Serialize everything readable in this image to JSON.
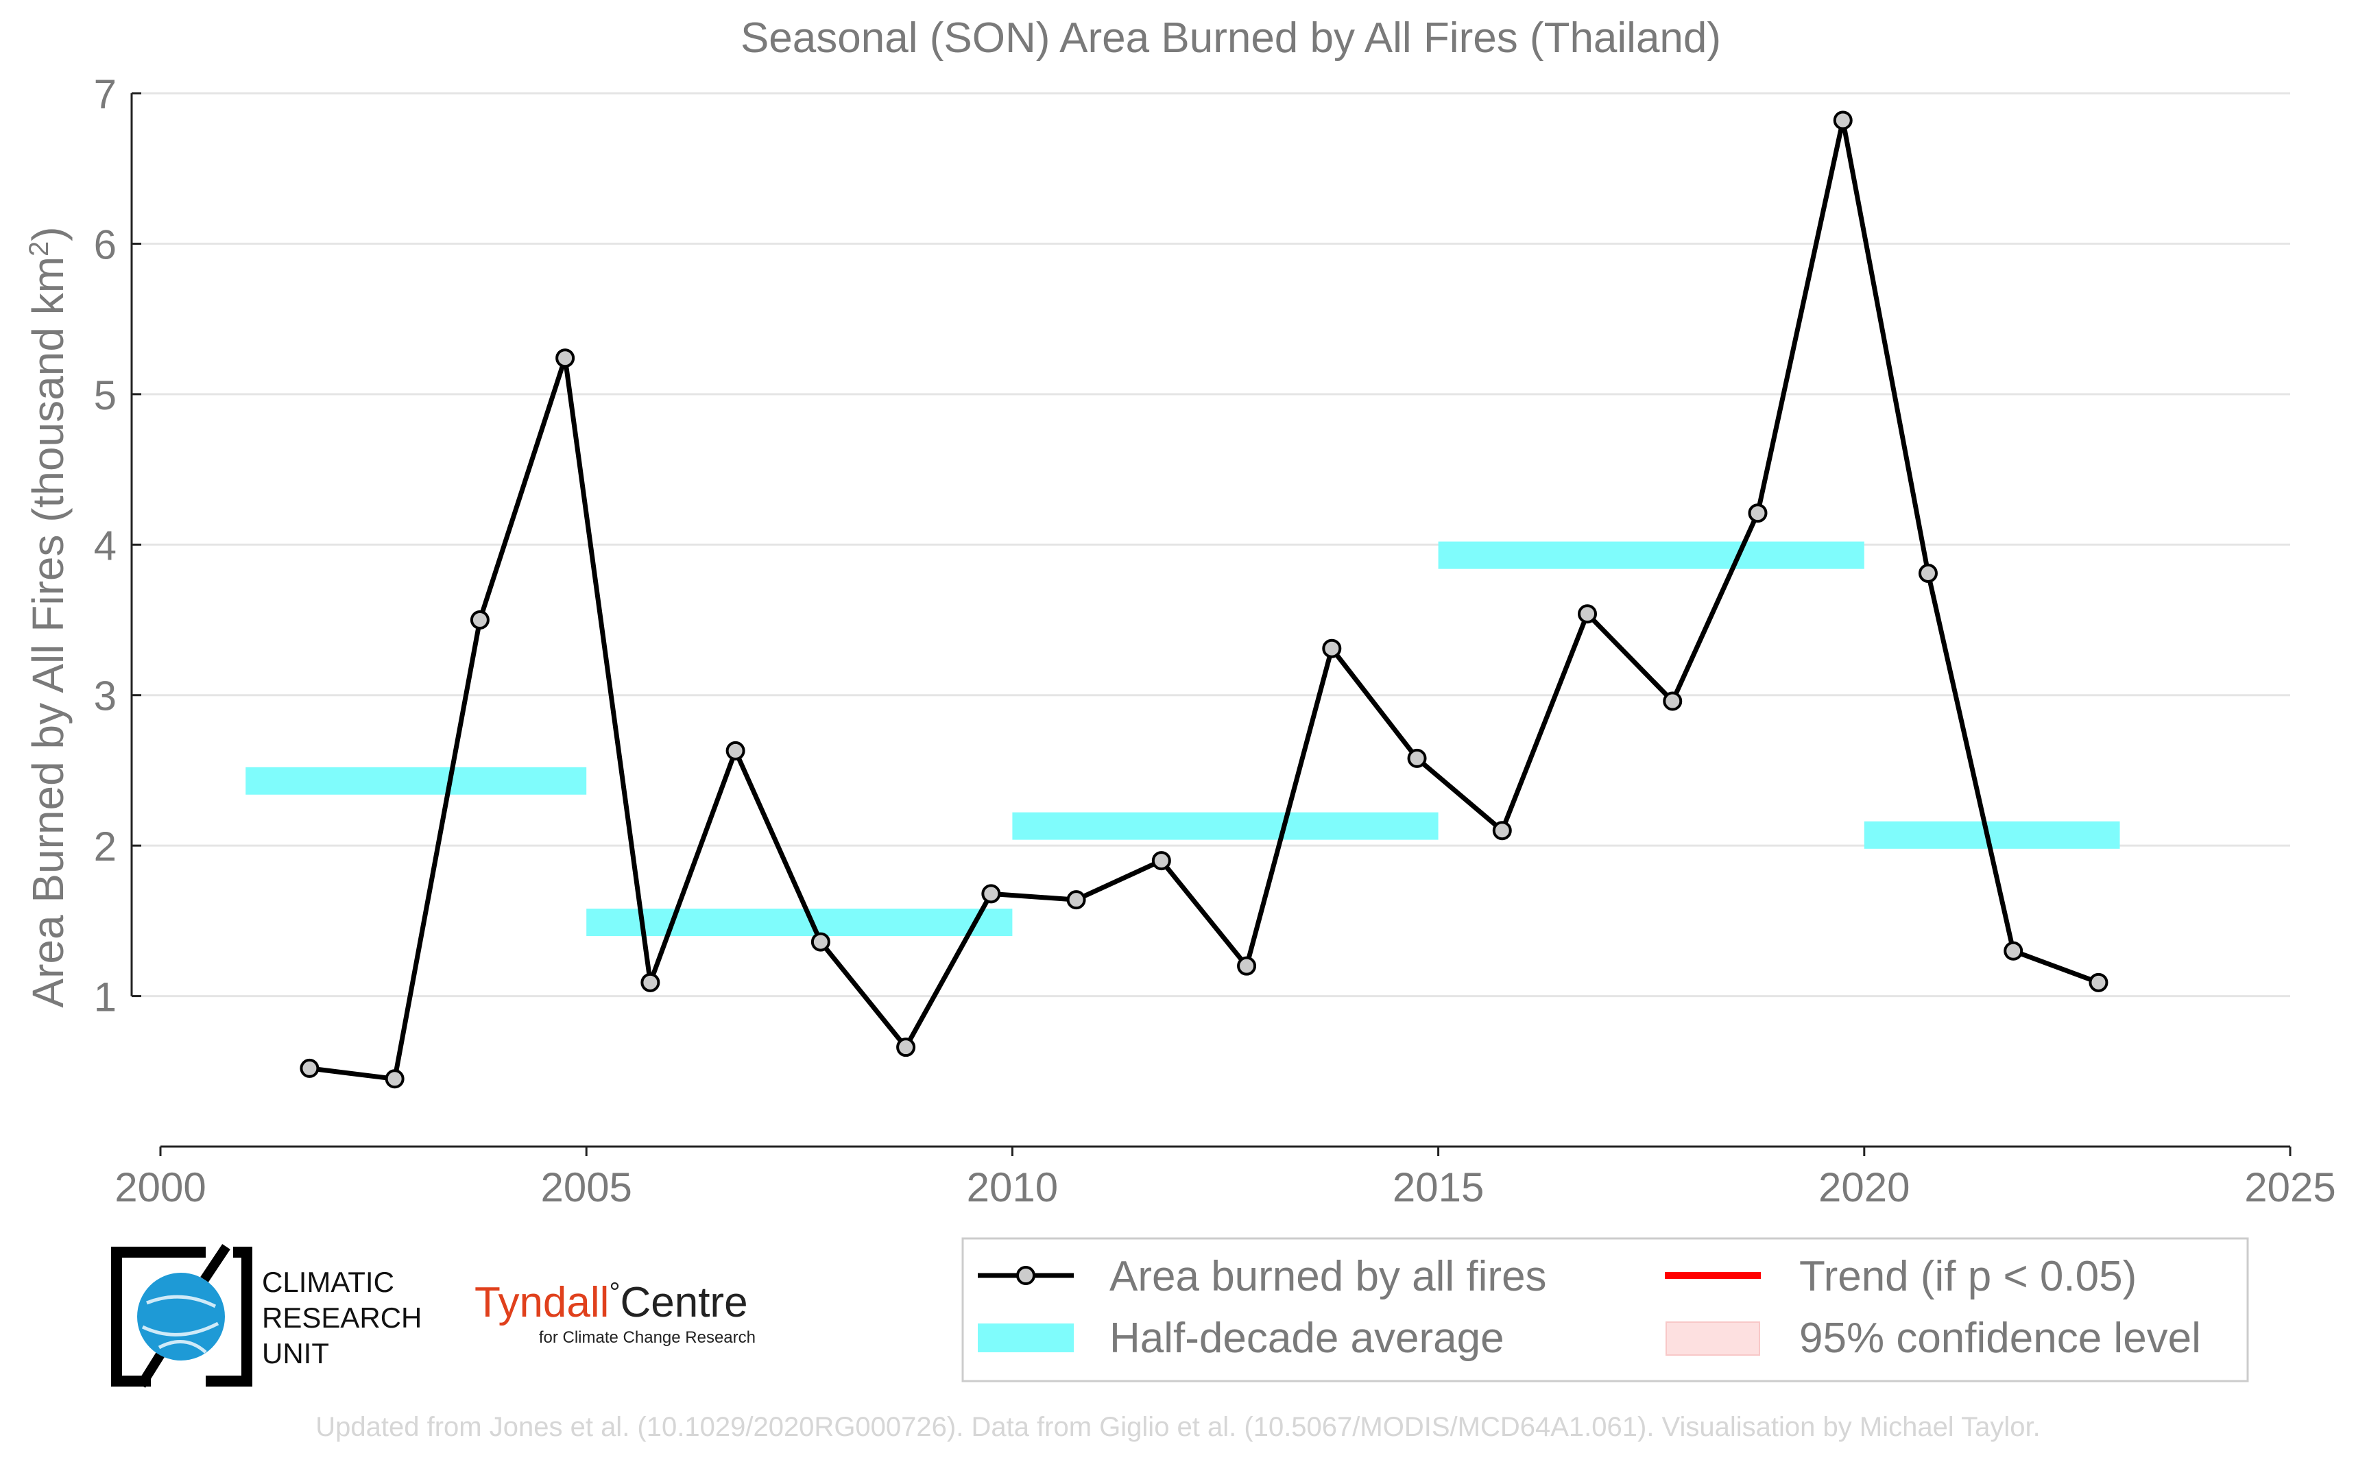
{
  "chart_data": {
    "type": "line",
    "title": "Seasonal (SON) Area Burned by All Fires (Thailand)",
    "ylabel_main": "Area Burned by All Fires (thousand km",
    "ylabel_sup": "2",
    "ylabel_end": ")",
    "xlabel": "",
    "xlim": [
      2000,
      2025
    ],
    "ylim": [
      0,
      7
    ],
    "xticks": [
      2000,
      2005,
      2010,
      2015,
      2020,
      2025
    ],
    "yticks": [
      1,
      2,
      3,
      4,
      5,
      6,
      7
    ],
    "grid": true,
    "legend_position": "bottom-right",
    "series": [
      {
        "name": "Area burned by all fires",
        "color": "#000000",
        "x": [
          2001.75,
          2002.75,
          2003.75,
          2004.75,
          2005.75,
          2006.75,
          2007.75,
          2008.75,
          2009.75,
          2010.75,
          2011.75,
          2012.75,
          2013.75,
          2014.75,
          2015.75,
          2016.75,
          2017.75,
          2018.75,
          2019.75,
          2020.75,
          2021.75,
          2022.75
        ],
        "values": [
          0.52,
          0.45,
          3.5,
          5.24,
          1.09,
          2.63,
          1.36,
          0.66,
          1.68,
          1.64,
          1.9,
          1.2,
          3.31,
          2.58,
          2.1,
          3.54,
          2.96,
          4.21,
          6.82,
          3.81,
          1.3,
          1.09
        ]
      }
    ],
    "half_decade_average": {
      "name": "Half-decade average",
      "color": "#7ffcfc",
      "segments": [
        {
          "x0": 2001,
          "x1": 2005,
          "value": 2.43
        },
        {
          "x0": 2005,
          "x1": 2010,
          "value": 1.49
        },
        {
          "x0": 2010,
          "x1": 2015,
          "value": 2.13
        },
        {
          "x0": 2015,
          "x1": 2020,
          "value": 3.93
        },
        {
          "x0": 2020,
          "x1": 2023,
          "value": 2.07
        }
      ]
    },
    "legend": [
      {
        "key": "line",
        "label": "Area burned by all fires",
        "color": "#000000"
      },
      {
        "key": "trend",
        "label": "Trend (if p < 0.05)",
        "color": "#ff0000"
      },
      {
        "key": "band",
        "label": "Half-decade average",
        "color": "#7ffcfc"
      },
      {
        "key": "confidence",
        "label": "95% confidence level",
        "color": "#fde0e0"
      }
    ]
  },
  "logos": {
    "cru": [
      "CLIMATIC",
      "RESEARCH",
      "UNIT"
    ],
    "tyndall_main": "Tyndall",
    "tyndall_deg": "°",
    "tyndall_centre": "Centre",
    "tyndall_sub": "for Climate Change Research"
  },
  "credit": "Updated from Jones et al. (10.1029/2020RG000726). Data from Giglio et al. (10.5067/MODIS/MCD64A1.061). Visualisation by Michael Taylor."
}
